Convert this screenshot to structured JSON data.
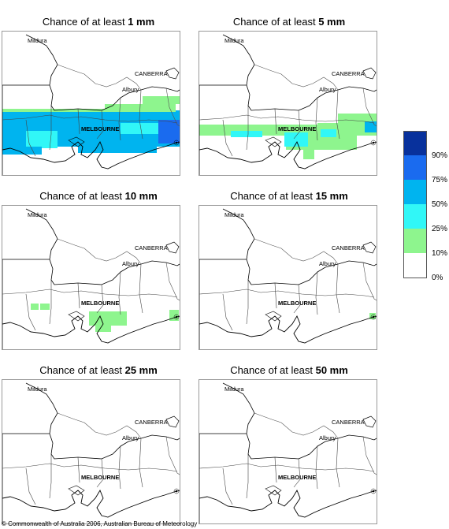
{
  "panels": [
    {
      "title_prefix": "Chance of at least ",
      "amount": "1 mm"
    },
    {
      "title_prefix": "Chance of at least ",
      "amount": "5 mm"
    },
    {
      "title_prefix": "Chance of at least ",
      "amount": "10 mm"
    },
    {
      "title_prefix": "Chance of at least ",
      "amount": "15 mm"
    },
    {
      "title_prefix": "Chance of at least ",
      "amount": "25 mm"
    },
    {
      "title_prefix": "Chance of at least ",
      "amount": "50 mm"
    }
  ],
  "place_labels": {
    "mildura": "Mildura",
    "canberra": "CANBERRA",
    "albury": "Albury",
    "melbourne": "MELBOURNE"
  },
  "legend": {
    "labels": [
      "90%",
      "75%",
      "50%",
      "25%",
      "10%",
      "0%"
    ],
    "colors": [
      "#08319c",
      "#1a6bef",
      "#00b4ef",
      "#31f7f7",
      "#8ef58e",
      "#ffffff"
    ]
  },
  "colors": {
    "green": "#8ef58e",
    "cyan": "#31f7f7",
    "skyblue": "#00b4ef",
    "blue": "#1a6bef"
  },
  "copyright": "© Commonwealth of Australia 2006, Australian Bureau of Meteorology"
}
